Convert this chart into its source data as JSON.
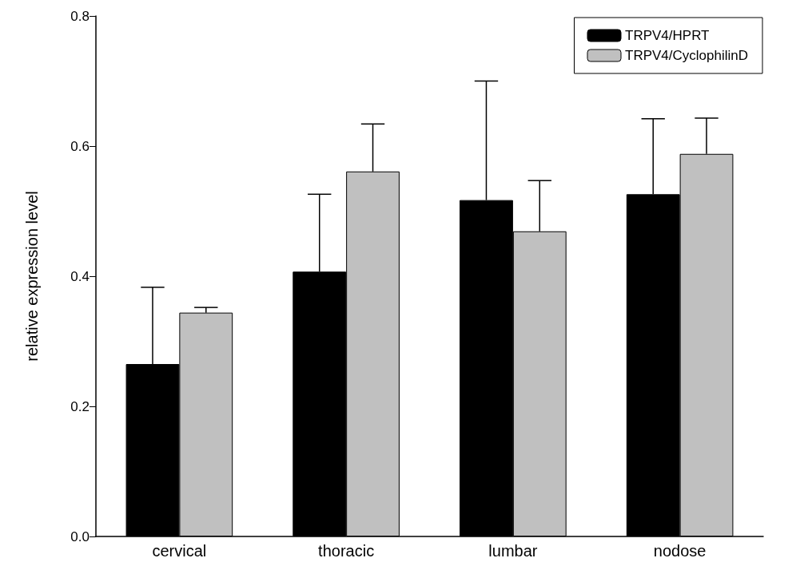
{
  "chart_data": {
    "type": "bar",
    "ylabel": "relative expression level",
    "categories": [
      "cervical",
      "thoracic",
      "lumbar",
      "nodose"
    ],
    "series": [
      {
        "name": "TRPV4/HPRT",
        "color": "#000000",
        "values": [
          0.265,
          0.407,
          0.517,
          0.526
        ],
        "errors": [
          [
            0.265,
            0.383
          ],
          [
            0.407,
            0.526
          ],
          [
            0.517,
            0.7
          ],
          [
            0.526,
            0.642
          ]
        ]
      },
      {
        "name": "TRPV4/CyclophilinD",
        "color": "#c0c0c0",
        "values": [
          0.344,
          0.561,
          0.469,
          0.588
        ],
        "errors": [
          [
            0.344,
            0.352
          ],
          [
            0.561,
            0.634
          ],
          [
            0.469,
            0.547
          ],
          [
            0.588,
            0.643
          ]
        ]
      }
    ],
    "ylim": [
      0,
      0.8
    ],
    "yticks": [
      {
        "value": 0,
        "label": "0.0"
      },
      0.2,
      0.4,
      0.6,
      0.8
    ],
    "grid": false,
    "legend": "top right"
  }
}
